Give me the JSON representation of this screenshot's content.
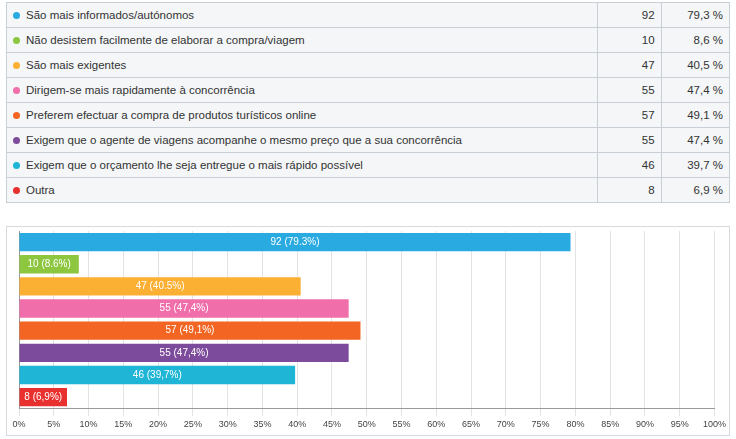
{
  "table": {
    "rows": [
      {
        "label": "São mais informados/autónomos",
        "count": 92,
        "percent": "79,3 %"
      },
      {
        "label": "Não desistem facilmente de elaborar a compra/viagem",
        "count": 10,
        "percent": "8,6 %"
      },
      {
        "label": "São mais exigentes",
        "count": 47,
        "percent": "40,5 %"
      },
      {
        "label": "Dirigem-se mais rapidamente à concorrência",
        "count": 55,
        "percent": "47,4 %"
      },
      {
        "label": "Preferem efectuar a compra de produtos turísticos online",
        "count": 57,
        "percent": "49,1 %"
      },
      {
        "label": "Exigem que o agente de viagens acompanhe o mesmo preço que a sua concorrência",
        "count": 55,
        "percent": "47,4 %"
      },
      {
        "label": "Exigem que o orçamento lhe seja entregue o mais rápido possível",
        "count": 46,
        "percent": "39,7 %"
      },
      {
        "label": "Outra",
        "count": 8,
        "percent": "6,9 %"
      }
    ]
  },
  "chart_data": {
    "type": "bar",
    "orientation": "horizontal",
    "categories": [
      null,
      null,
      null,
      null,
      null,
      null,
      null,
      null
    ],
    "values": [
      79.3,
      8.6,
      40.5,
      47.4,
      49.1,
      47.4,
      39.7,
      6.9
    ],
    "value_labels": [
      "92 (79.3%)",
      "10 (8.6%)",
      "47 (40.5%)",
      "55 (47,4%)",
      "57 (49,1%)",
      "55 (47,4%)",
      "46 (39,7%)",
      "8 (6,9%)"
    ],
    "colors": [
      "#29abe2",
      "#8dc63f",
      "#fbb034",
      "#f06eaa",
      "#f26522",
      "#7d4b9b",
      "#1fb5d6",
      "#e8312f"
    ],
    "data_labels": true,
    "tick_labels": "x",
    "grid": true,
    "xlim": [
      0,
      100
    ],
    "xticks": [
      {
        "value": 0,
        "label": "0%"
      },
      {
        "value": 5,
        "label": "5%"
      },
      {
        "value": 10,
        "label": "10%"
      },
      {
        "value": 15,
        "label": "15%"
      },
      {
        "value": 20,
        "label": "20%"
      },
      {
        "value": 25,
        "label": "25%"
      },
      {
        "value": 30,
        "label": "30%"
      },
      {
        "value": 35,
        "label": "35%"
      },
      {
        "value": 40,
        "label": "40%"
      },
      {
        "value": 45,
        "label": "45%"
      },
      {
        "value": 50,
        "label": "50%"
      },
      {
        "value": 55,
        "label": "55%"
      },
      {
        "value": 60,
        "label": "60%"
      },
      {
        "value": 65,
        "label": "65%"
      },
      {
        "value": 70,
        "label": "70%"
      },
      {
        "value": 75,
        "label": "75%"
      },
      {
        "value": 80,
        "label": "80%"
      },
      {
        "value": 85,
        "label": "85%"
      },
      {
        "value": 90,
        "label": "90%"
      },
      {
        "value": 95,
        "label": "95%"
      },
      {
        "value": 100,
        "label": "100%"
      }
    ]
  }
}
